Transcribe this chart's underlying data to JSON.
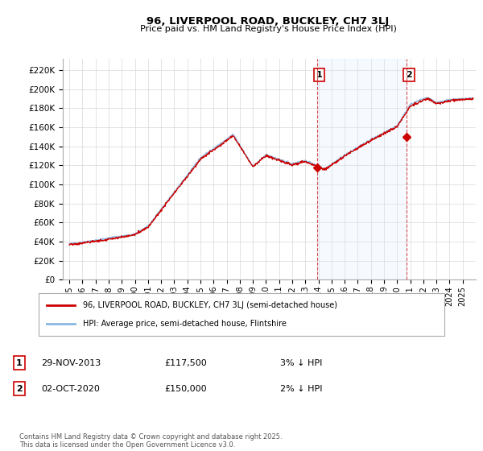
{
  "title": "96, LIVERPOOL ROAD, BUCKLEY, CH7 3LJ",
  "subtitle": "Price paid vs. HM Land Registry's House Price Index (HPI)",
  "ytick_values": [
    0,
    20000,
    40000,
    60000,
    80000,
    100000,
    120000,
    140000,
    160000,
    180000,
    200000,
    220000
  ],
  "ylim": [
    0,
    232000
  ],
  "hpi_color": "#88b8e0",
  "price_color": "#cc0000",
  "sale1_x": 2013.91,
  "sale1_price": 117500,
  "sale1_label": "1",
  "sale2_x": 2020.75,
  "sale2_price": 150000,
  "sale2_label": "2",
  "legend_line1": "96, LIVERPOOL ROAD, BUCKLEY, CH7 3LJ (semi-detached house)",
  "legend_line2": "HPI: Average price, semi-detached house, Flintshire",
  "table_row1": [
    "1",
    "29-NOV-2013",
    "£117,500",
    "3% ↓ HPI"
  ],
  "table_row2": [
    "2",
    "02-OCT-2020",
    "£150,000",
    "2% ↓ HPI"
  ],
  "footer": "Contains HM Land Registry data © Crown copyright and database right 2025.\nThis data is licensed under the Open Government Licence v3.0.",
  "background_color": "#ffffff",
  "plot_bg_color": "#ffffff",
  "grid_color": "#d8d8d8",
  "vline_color": "#cc0000",
  "shade_color": "#ddeeff",
  "xlim_left": 1994.5,
  "xlim_right": 2026.0
}
